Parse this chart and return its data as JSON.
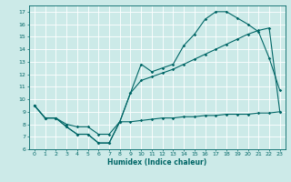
{
  "xlabel": "Humidex (Indice chaleur)",
  "bg_color": "#cceae8",
  "grid_color": "#ffffff",
  "line_color": "#006666",
  "xlim": [
    -0.5,
    23.5
  ],
  "ylim": [
    6.0,
    17.5
  ],
  "yticks": [
    6,
    7,
    8,
    9,
    10,
    11,
    12,
    13,
    14,
    15,
    16,
    17
  ],
  "xticks": [
    0,
    1,
    2,
    3,
    4,
    5,
    6,
    7,
    8,
    9,
    10,
    11,
    12,
    13,
    14,
    15,
    16,
    17,
    18,
    19,
    20,
    21,
    22,
    23
  ],
  "line1_x": [
    0,
    1,
    2,
    3,
    4,
    5,
    6,
    7,
    8,
    9,
    10,
    11,
    12,
    13,
    14,
    15,
    16,
    17,
    18,
    19,
    20,
    21,
    22,
    23
  ],
  "line1_y": [
    9.5,
    8.5,
    8.5,
    7.8,
    7.2,
    7.2,
    6.5,
    6.5,
    8.2,
    10.5,
    12.8,
    12.2,
    12.5,
    12.8,
    14.3,
    15.2,
    16.4,
    17.0,
    17.0,
    16.5,
    16.0,
    15.4,
    13.3,
    10.7
  ],
  "line2_x": [
    0,
    1,
    2,
    3,
    4,
    5,
    6,
    7,
    8,
    9,
    10,
    11,
    12,
    13,
    14,
    15,
    16,
    17,
    18,
    19,
    20,
    21,
    22,
    23
  ],
  "line2_y": [
    9.5,
    8.5,
    8.5,
    7.8,
    7.2,
    7.2,
    6.5,
    6.5,
    8.2,
    10.5,
    11.5,
    11.8,
    12.1,
    12.4,
    12.8,
    13.2,
    13.6,
    14.0,
    14.4,
    14.8,
    15.2,
    15.5,
    15.7,
    9.0
  ],
  "line3_x": [
    0,
    1,
    2,
    3,
    4,
    5,
    6,
    7,
    8,
    9,
    10,
    11,
    12,
    13,
    14,
    15,
    16,
    17,
    18,
    19,
    20,
    21,
    22,
    23
  ],
  "line3_y": [
    9.5,
    8.5,
    8.5,
    8.0,
    7.8,
    7.8,
    7.2,
    7.2,
    8.2,
    8.2,
    8.3,
    8.4,
    8.5,
    8.5,
    8.6,
    8.6,
    8.7,
    8.7,
    8.8,
    8.8,
    8.8,
    8.9,
    8.9,
    9.0
  ],
  "lw": 0.8,
  "ms": 1.8,
  "tick_fontsize": 4.5,
  "xlabel_fontsize": 5.5
}
